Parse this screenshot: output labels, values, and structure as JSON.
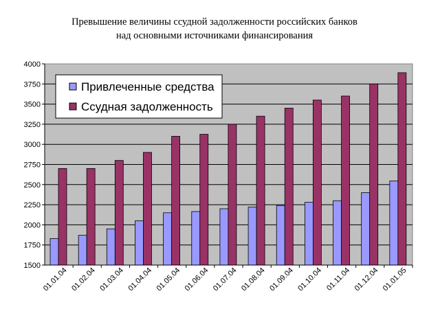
{
  "chart_data": {
    "type": "bar",
    "title_lines": [
      "Превышение величины ссудной задолженности российских банков",
      "над основными источниками финансирования"
    ],
    "xlabel": "",
    "ylabel": "",
    "categories": [
      "01.01.04",
      "01.02.04",
      "01.03.04",
      "01.04.04",
      "01.05.04",
      "01.06.04",
      "01.07.04",
      "01.08.04",
      "01.09.04",
      "01.10.04",
      "01.11.04",
      "01.12.04",
      "01.01.05"
    ],
    "ylim": [
      1500,
      4000
    ],
    "yticks": [
      "1500",
      "1750",
      "2000",
      "2250",
      "2500",
      "2750",
      "3000",
      "3250",
      "3500",
      "3750",
      "4000"
    ],
    "grid": "horizontal",
    "legend_position": "top-left",
    "plot_background": "#c0c0c0",
    "series": [
      {
        "name": "Привлеченные средства",
        "color": "#9999ff",
        "values": [
          1830,
          1870,
          1950,
          2050,
          2150,
          2165,
          2200,
          2220,
          2240,
          2280,
          2300,
          2400,
          2545
        ]
      },
      {
        "name": "Ссудная задолженность",
        "color": "#993366",
        "values": [
          2700,
          2700,
          2800,
          2900,
          3100,
          3125,
          3250,
          3350,
          3450,
          3550,
          3600,
          3750,
          3890
        ]
      }
    ]
  }
}
